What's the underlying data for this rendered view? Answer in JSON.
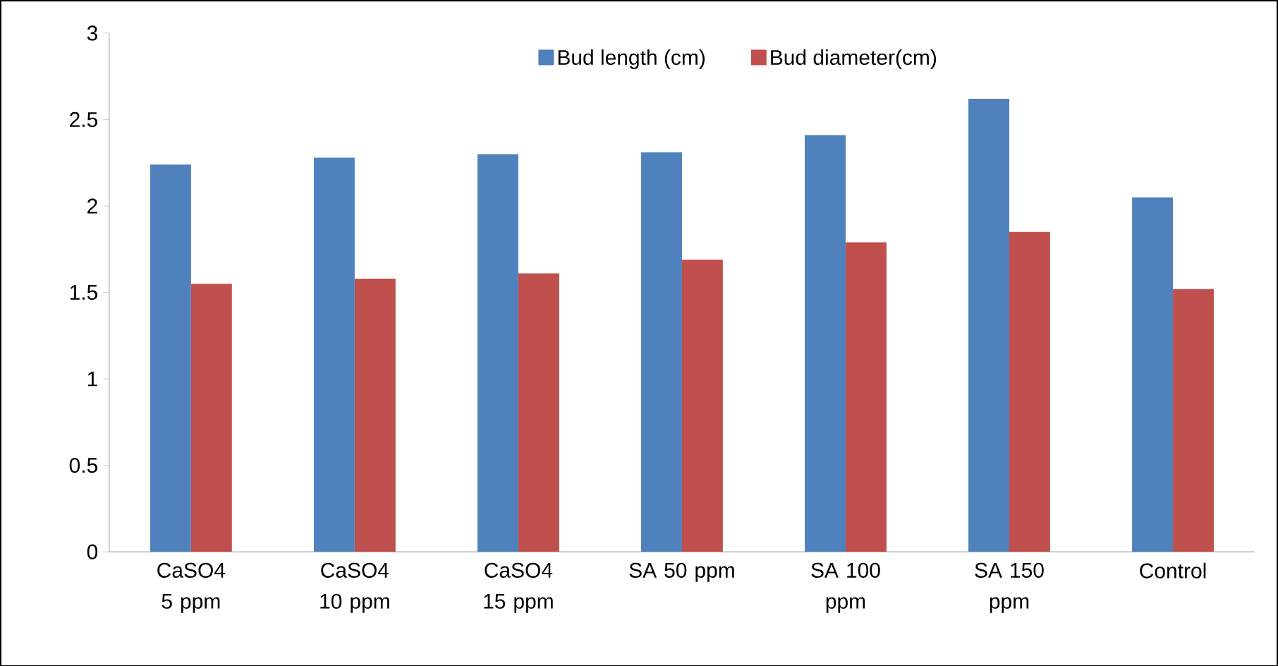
{
  "chart_data": {
    "type": "bar",
    "categories": [
      "CaSO4 5 ppm",
      "CaSO4 10 ppm",
      "CaSO4 15 ppm",
      "SA 50 ppm",
      "SA 100 ppm",
      "SA 150 ppm",
      "Control"
    ],
    "series": [
      {
        "name": "Bud length (cm)",
        "color": "#4f81bd",
        "values": [
          2.24,
          2.28,
          2.3,
          2.31,
          2.41,
          2.62,
          2.05
        ]
      },
      {
        "name": "Bud diameter(cm)",
        "color": "#c0504d",
        "values": [
          1.55,
          1.58,
          1.61,
          1.69,
          1.79,
          1.85,
          1.52
        ]
      }
    ],
    "ylim": [
      0,
      3
    ],
    "yticks": [
      0,
      0.5,
      1,
      1.5,
      2,
      2.5,
      3
    ],
    "grid": false,
    "legend": "top"
  }
}
